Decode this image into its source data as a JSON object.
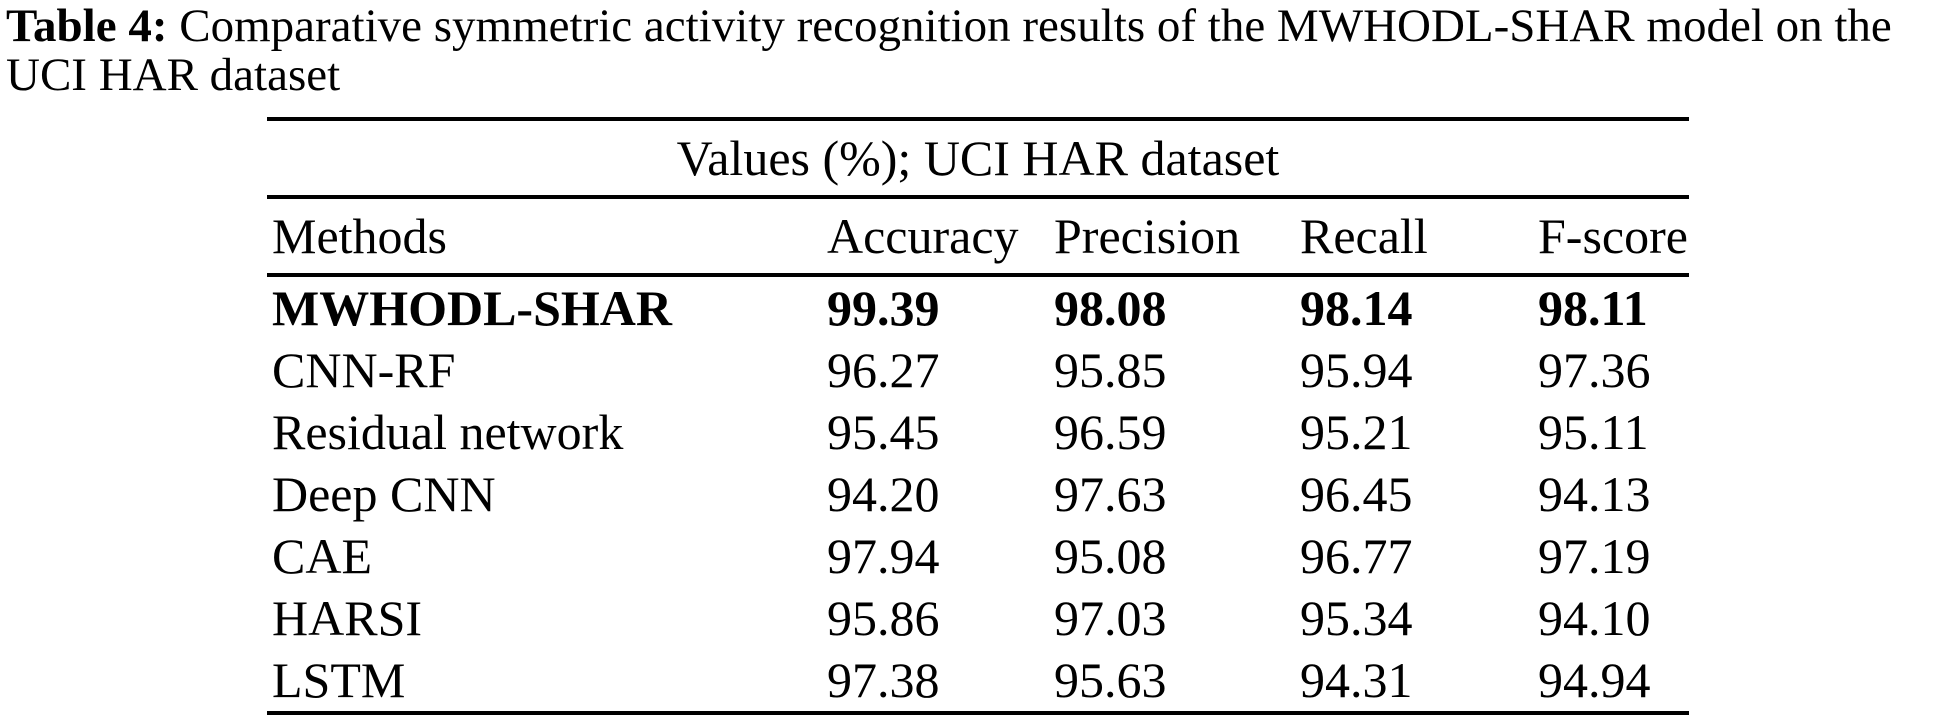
{
  "caption": {
    "label": "Table 4:",
    "line1": " Comparative symmetric activity recognition results of the MWHODL-SHAR model on the",
    "line2": "UCI HAR dataset"
  },
  "table": {
    "span_header": "Values (%); UCI HAR dataset",
    "columns": {
      "method": "Methods",
      "accuracy": "Accuracy",
      "precision": "Precision",
      "recall": "Recall",
      "fscore": "F-score"
    },
    "rows": [
      {
        "method": "MWHODL-SHAR",
        "values": [
          "99.39",
          "98.08",
          "98.14",
          "98.11"
        ]
      },
      {
        "method": "CNN-RF",
        "values": [
          "96.27",
          "95.85",
          "95.94",
          "97.36"
        ]
      },
      {
        "method": "Residual network",
        "values": [
          "95.45",
          "96.59",
          "95.21",
          "95.11"
        ]
      },
      {
        "method": "Deep CNN",
        "values": [
          "94.20",
          "97.63",
          "96.45",
          "94.13"
        ]
      },
      {
        "method": "CAE",
        "values": [
          "97.94",
          "95.08",
          "96.77",
          "97.19"
        ]
      },
      {
        "method": "HARSI",
        "values": [
          "95.86",
          "97.03",
          "95.34",
          "94.10"
        ]
      },
      {
        "method": "LSTM",
        "values": [
          "97.38",
          "95.63",
          "94.31",
          "94.94"
        ]
      }
    ],
    "colors": {
      "text": "#000000",
      "background": "#ffffff",
      "rule": "#000000"
    }
  }
}
